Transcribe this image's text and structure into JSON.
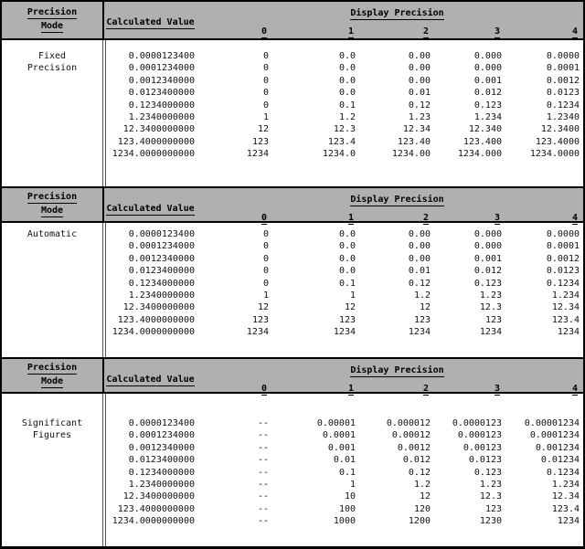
{
  "colors": {
    "header_bg": "#b0b0b0",
    "border": "#000000",
    "body_bg": "#ffffff",
    "text": "#111111"
  },
  "header": {
    "precision_line1": "Precision",
    "precision_line2": "Mode",
    "calculated_value": "Calculated Value",
    "display_precision": "Display Precision",
    "precision_levels": [
      "0",
      "1",
      "2",
      "3",
      "4"
    ]
  },
  "sections": [
    {
      "mode_lines": [
        "Fixed",
        "Precision"
      ],
      "rows": [
        {
          "calc": "0.0000123400",
          "p": [
            "0",
            "0.0",
            "0.00",
            "0.000",
            "0.0000"
          ]
        },
        {
          "calc": "0.0001234000",
          "p": [
            "0",
            "0.0",
            "0.00",
            "0.000",
            "0.0001"
          ]
        },
        {
          "calc": "0.0012340000",
          "p": [
            "0",
            "0.0",
            "0.00",
            "0.001",
            "0.0012"
          ]
        },
        {
          "calc": "0.0123400000",
          "p": [
            "0",
            "0.0",
            "0.01",
            "0.012",
            "0.0123"
          ]
        },
        {
          "calc": "0.1234000000",
          "p": [
            "0",
            "0.1",
            "0.12",
            "0.123",
            "0.1234"
          ]
        },
        {
          "calc": "1.2340000000",
          "p": [
            "1",
            "1.2",
            "1.23",
            "1.234",
            "1.2340"
          ]
        },
        {
          "calc": "12.3400000000",
          "p": [
            "12",
            "12.3",
            "12.34",
            "12.340",
            "12.3400"
          ]
        },
        {
          "calc": "123.4000000000",
          "p": [
            "123",
            "123.4",
            "123.40",
            "123.400",
            "123.4000"
          ]
        },
        {
          "calc": "1234.0000000000",
          "p": [
            "1234",
            "1234.0",
            "1234.00",
            "1234.000",
            "1234.0000"
          ]
        }
      ]
    },
    {
      "mode_lines": [
        "Automatic"
      ],
      "rows": [
        {
          "calc": "0.0000123400",
          "p": [
            "0",
            "0.0",
            "0.00",
            "0.000",
            "0.0000"
          ]
        },
        {
          "calc": "0.0001234000",
          "p": [
            "0",
            "0.0",
            "0.00",
            "0.000",
            "0.0001"
          ]
        },
        {
          "calc": "0.0012340000",
          "p": [
            "0",
            "0.0",
            "0.00",
            "0.001",
            "0.0012"
          ]
        },
        {
          "calc": "0.0123400000",
          "p": [
            "0",
            "0.0",
            "0.01",
            "0.012",
            "0.0123"
          ]
        },
        {
          "calc": "0.1234000000",
          "p": [
            "0",
            "0.1",
            "0.12",
            "0.123",
            "0.1234"
          ]
        },
        {
          "calc": "1.2340000000",
          "p": [
            "1",
            "1",
            "1.2",
            "1.23",
            "1.234"
          ]
        },
        {
          "calc": "12.3400000000",
          "p": [
            "12",
            "12",
            "12",
            "12.3",
            "12.34"
          ]
        },
        {
          "calc": "123.4000000000",
          "p": [
            "123",
            "123",
            "123",
            "123",
            "123.4"
          ]
        },
        {
          "calc": "1234.0000000000",
          "p": [
            "1234",
            "1234",
            "1234",
            "1234",
            "1234"
          ]
        }
      ]
    },
    {
      "mode_lines": [
        "Significant",
        "Figures"
      ],
      "rows": [
        {
          "calc": "0.0000123400",
          "p": [
            "--",
            "0.00001",
            "0.000012",
            "0.0000123",
            "0.00001234"
          ]
        },
        {
          "calc": "0.0001234000",
          "p": [
            "--",
            "0.0001",
            "0.00012",
            "0.000123",
            "0.0001234"
          ]
        },
        {
          "calc": "0.0012340000",
          "p": [
            "--",
            "0.001",
            "0.0012",
            "0.00123",
            "0.001234"
          ]
        },
        {
          "calc": "0.0123400000",
          "p": [
            "--",
            "0.01",
            "0.012",
            "0.0123",
            "0.01234"
          ]
        },
        {
          "calc": "0.1234000000",
          "p": [
            "--",
            "0.1",
            "0.12",
            "0.123",
            "0.1234"
          ]
        },
        {
          "calc": "1.2340000000",
          "p": [
            "--",
            "1",
            "1.2",
            "1.23",
            "1.234"
          ]
        },
        {
          "calc": "12.3400000000",
          "p": [
            "--",
            "10",
            "12",
            "12.3",
            "12.34"
          ]
        },
        {
          "calc": "123.4000000000",
          "p": [
            "--",
            "100",
            "120",
            "123",
            "123.4"
          ]
        },
        {
          "calc": "1234.0000000000",
          "p": [
            "--",
            "1000",
            "1200",
            "1230",
            "1234"
          ]
        }
      ]
    }
  ]
}
